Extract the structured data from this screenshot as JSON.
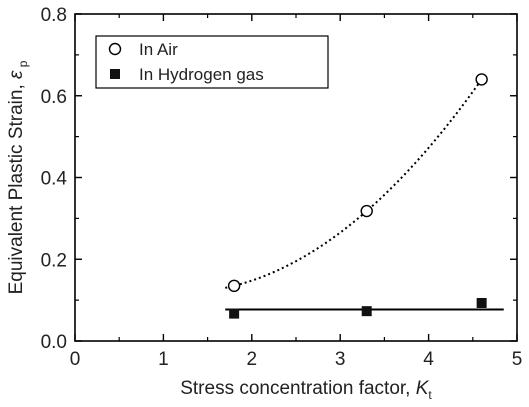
{
  "chart_data": {
    "type": "scatter",
    "xlabel": "Stress concentration factor,",
    "xlabel_symbol": "K",
    "xlabel_subscript": "t",
    "ylabel": "Equivalent Plastic Strain,",
    "ylabel_symbol": "ε",
    "ylabel_subscript": "p",
    "xlim": [
      0,
      5
    ],
    "ylim": [
      0,
      0.8
    ],
    "x_ticks": [
      "0",
      "1",
      "2",
      "3",
      "4",
      "5"
    ],
    "y_ticks": [
      "0.0",
      "0.2",
      "0.4",
      "0.6",
      "0.8"
    ],
    "grid": false,
    "legend_position": "top-left",
    "series": [
      {
        "name": "In Air",
        "marker": "open-circle",
        "x": [
          1.8,
          3.3,
          4.6
        ],
        "y": [
          0.135,
          0.318,
          0.64
        ],
        "trend": "quadratic",
        "trend_style": "dotted",
        "trend_x_range": [
          1.7,
          4.62
        ]
      },
      {
        "name": "In Hydrogen gas",
        "marker": "filled-square",
        "x": [
          1.8,
          3.3,
          4.6
        ],
        "y": [
          0.067,
          0.073,
          0.093
        ],
        "trend": "constant",
        "trend_value": 0.077,
        "trend_style": "solid",
        "trend_x_range": [
          1.7,
          4.85
        ]
      }
    ]
  }
}
